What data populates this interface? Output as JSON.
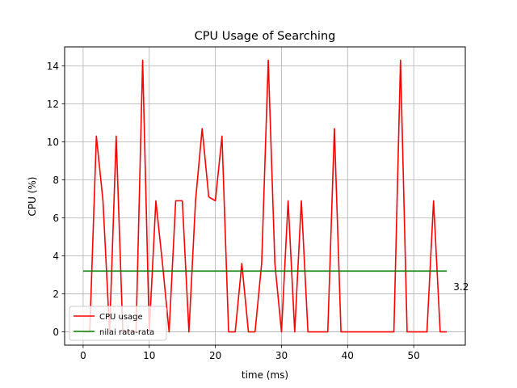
{
  "chart_data": {
    "type": "line",
    "title": "CPU Usage of Searching",
    "xlabel": "time (ms)",
    "ylabel": "CPU (%)",
    "xlim": [
      -2.8,
      57.8
    ],
    "ylim": [
      -0.7,
      15.0
    ],
    "xticks": [
      0,
      10,
      20,
      30,
      40,
      50
    ],
    "yticks": [
      0,
      2,
      4,
      6,
      8,
      10,
      12,
      14
    ],
    "grid": true,
    "legend_position": "lower-left",
    "series": [
      {
        "name": "CPU usage",
        "color": "#ff0000",
        "x": [
          0,
          1,
          2,
          3,
          4,
          5,
          6,
          7,
          8,
          9,
          10,
          11,
          12,
          13,
          14,
          15,
          16,
          17,
          18,
          19,
          20,
          21,
          22,
          23,
          24,
          25,
          26,
          27,
          28,
          29,
          30,
          31,
          32,
          33,
          34,
          35,
          36,
          37,
          38,
          39,
          40,
          41,
          42,
          43,
          44,
          45,
          46,
          47,
          48,
          49,
          50,
          51,
          52,
          53,
          54,
          55
        ],
        "values": [
          0,
          0,
          10.3,
          6.9,
          0,
          10.3,
          0,
          0,
          0,
          14.3,
          0,
          6.9,
          3.6,
          0,
          6.9,
          6.9,
          0,
          6.9,
          10.7,
          7.1,
          6.9,
          10.3,
          0,
          0,
          3.6,
          0,
          0,
          3.6,
          14.3,
          3.6,
          0,
          6.9,
          0,
          6.9,
          0,
          0,
          0,
          0,
          10.7,
          0,
          0,
          0,
          0,
          0,
          0,
          0,
          0,
          0,
          14.3,
          0,
          0,
          0,
          0,
          6.9,
          0,
          0
        ]
      },
      {
        "name": "nilai rata-rata",
        "color": "#008000",
        "x": [
          0,
          55
        ],
        "values": [
          3.2,
          3.2
        ]
      }
    ],
    "annotations": [
      {
        "text": "3.2",
        "x": 56,
        "y": 2.2
      }
    ]
  }
}
